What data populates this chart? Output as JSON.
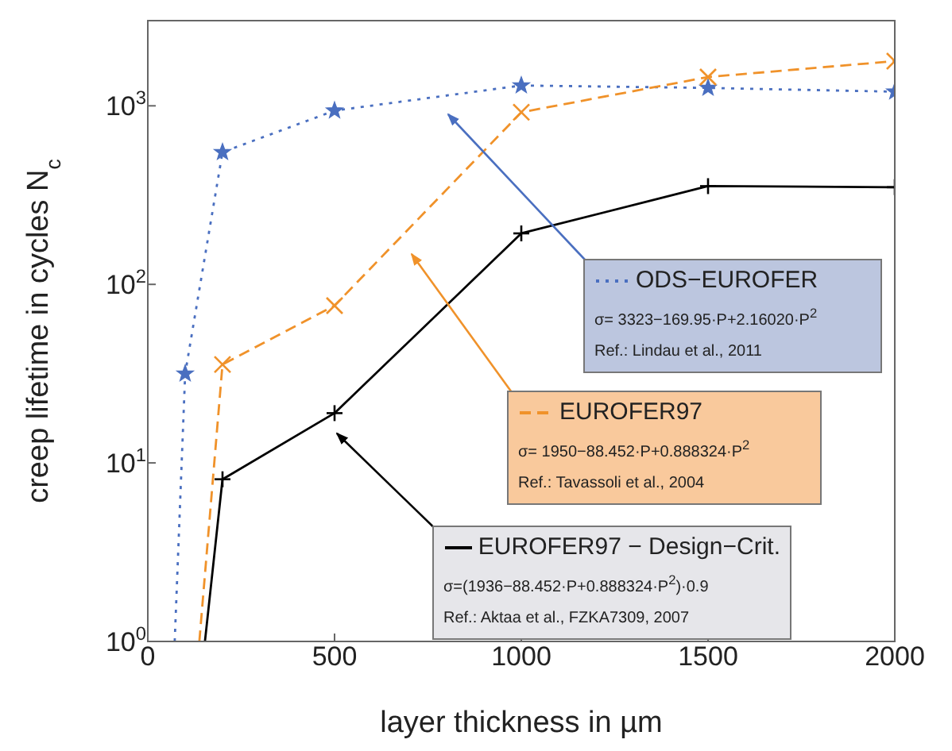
{
  "chart_data": {
    "type": "line",
    "xlabel": "layer thickness in µm",
    "ylabel": "creep lifetime in cycles N$_{c}$",
    "log": "y",
    "legend": "bottom right",
    "grid": false,
    "xlim": [
      0,
      2000
    ],
    "xticks": [
      0,
      500,
      1000,
      1500,
      2000
    ],
    "ylim": [
      1,
      3000
    ],
    "yticks": [
      {
        "value": 1,
        "label": "10$^{0}$"
      },
      {
        "value": 10,
        "label": "10$^{1}$"
      },
      {
        "value": 100,
        "label": "10$^{2}$"
      },
      {
        "value": 1000,
        "label": "10$^{3}$"
      }
    ],
    "series": [
      {
        "name": "ODS−EUROFER",
        "color": "#4a6fc0",
        "line_style": "dotted",
        "marker": "star",
        "x": [
          72,
          100,
          200,
          500,
          1000,
          1500,
          2000
        ],
        "values": [
          1,
          31.6,
          550,
          940,
          1300,
          1260,
          1200
        ]
      },
      {
        "name": "EUROFER97",
        "color": "#f0922a",
        "line_style": "dashed",
        "marker": "cross",
        "x": [
          138,
          200,
          500,
          1000,
          1500,
          2000
        ],
        "values": [
          1,
          35.6,
          76,
          920,
          1450,
          1780
        ]
      },
      {
        "name": "EUROFER97 − Design−Crit.",
        "color": "#000000",
        "line_style": "solid",
        "marker": "plus",
        "x": [
          153,
          200,
          500,
          1000,
          1500,
          2000
        ],
        "values": [
          1,
          8.1,
          19,
          193,
          355,
          350
        ]
      }
    ],
    "annotations": [
      "σ= 3323−169.95·P+2.16020·P$^{2}$",
      "σ= 1950−88.452·P+0.888324·P$^{2}$",
      "σ=(1936−88.452·P+0.888324·P$^{2}$)·0.9",
      "Ref.: Lindau et al., 2011",
      "Ref.: Tavassoli et al., 2004",
      "Ref.: Aktaa et al., FZKA7309, 2007"
    ]
  }
}
